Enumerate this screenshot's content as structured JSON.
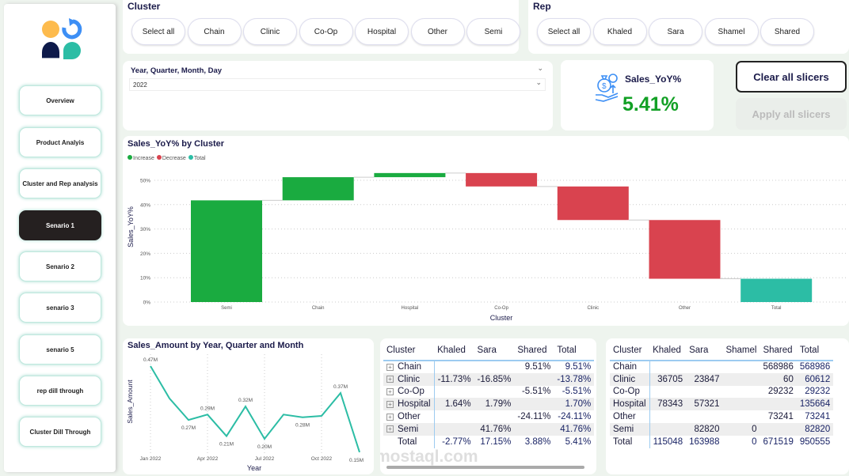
{
  "nav": {
    "items": [
      "Overview",
      "Product Analyis",
      "Cluster and Rep analysis",
      "Senario 1",
      "Senario 2",
      "senario 3",
      "senario 5",
      "rep dill through",
      "Cluster Dill Through"
    ],
    "active": 3
  },
  "cluster_slicer": {
    "title": "Cluster",
    "options": [
      "Select all",
      "Chain",
      "Clinic",
      "Co-Op",
      "Hospital",
      "Other",
      "Semi"
    ]
  },
  "rep_slicer": {
    "title": "Rep",
    "options": [
      "Select all",
      "Khaled",
      "Sara",
      "Shamel",
      "Shared"
    ]
  },
  "date_slicer": {
    "title": "Year, Quarter, Month, Day",
    "value": "2022"
  },
  "kpi": {
    "label": "Sales_YoY%",
    "value": "5.41%",
    "icon": "money-bag-hand-icon",
    "color": "#12a025"
  },
  "buttons": {
    "clear": "Clear all slicers",
    "apply": "Apply all slicers"
  },
  "colors": {
    "increase": "#1aab40",
    "decrease": "#d9434f",
    "total": "#2cbda5",
    "line": "#2cbda5"
  },
  "chart_data": [
    {
      "type": "waterfall",
      "title": "Sales_YoY% by Cluster",
      "xlabel": "Cluster",
      "ylabel": "Sales_YoY%",
      "legend": [
        "Increase",
        "Decrease",
        "Total"
      ],
      "legend_position": "top-left",
      "categories": [
        "Semi",
        "Chain",
        "Hospital",
        "Co-Op",
        "Clinic",
        "Other",
        "Total"
      ],
      "values": [
        41.76,
        9.51,
        1.7,
        -5.51,
        -13.78,
        -24.11,
        null
      ],
      "yticks": [
        "0%",
        "10%",
        "20%",
        "30%",
        "40%",
        "50%"
      ],
      "ylim": [
        0,
        55
      ],
      "grid": true
    },
    {
      "type": "line",
      "title": "Sales_Amount by Year, Quarter and Month",
      "xlabel": "Year",
      "ylabel": "Sales_Amount",
      "x": [
        "Jan 2022",
        "Feb 2022",
        "Mar 2022",
        "Apr 2022",
        "May 2022",
        "Jun 2022",
        "Jul 2022",
        "Aug 2022",
        "Sep 2022",
        "Oct 2022",
        "Nov 2022",
        "Dec 2022"
      ],
      "values": [
        0.47,
        0.35,
        0.27,
        0.29,
        0.21,
        0.32,
        0.2,
        0.29,
        0.28,
        0.285,
        0.37,
        0.15
      ],
      "labels": [
        "0.47M",
        null,
        "0.27M",
        "0.29M",
        "0.21M",
        "0.32M",
        "0.20M",
        null,
        "0.28M",
        null,
        "0.37M",
        "0.15M"
      ],
      "xticks": [
        "Jan 2022",
        "Apr 2022",
        "Jul 2022",
        "Oct 2022"
      ],
      "grid": "vertical"
    }
  ],
  "yoy_matrix": {
    "headers": [
      "Cluster",
      "Khaled",
      "Sara",
      "Shared",
      "Total"
    ],
    "rows": [
      [
        "Chain",
        "",
        "",
        "9.51%",
        "9.51%"
      ],
      [
        "Clinic",
        "-11.73%",
        "-16.85%",
        "",
        "-13.78%"
      ],
      [
        "Co-Op",
        "",
        "",
        "-5.51%",
        "-5.51%"
      ],
      [
        "Hospital",
        "1.64%",
        "1.79%",
        "",
        "1.70%"
      ],
      [
        "Other",
        "",
        "",
        "-24.11%",
        "-24.11%"
      ],
      [
        "Semi",
        "",
        "41.76%",
        "",
        "41.76%"
      ]
    ],
    "total": [
      "Total",
      "-2.77%",
      "17.15%",
      "3.88%",
      "5.41%"
    ]
  },
  "amount_matrix": {
    "headers": [
      "Cluster",
      "Khaled",
      "Sara",
      "Shamel",
      "Shared",
      "Total"
    ],
    "rows": [
      [
        "Chain",
        "",
        "",
        "",
        "568986",
        "568986"
      ],
      [
        "Clinic",
        "36705",
        "23847",
        "",
        "60",
        "60612"
      ],
      [
        "Co-Op",
        "",
        "",
        "",
        "29232",
        "29232"
      ],
      [
        "Hospital",
        "78343",
        "57321",
        "",
        "",
        "135664"
      ],
      [
        "Other",
        "",
        "",
        "",
        "73241",
        "73241"
      ],
      [
        "Semi",
        "",
        "82820",
        "0",
        "",
        "82820"
      ]
    ],
    "total": [
      "Total",
      "115048",
      "163988",
      "0",
      "671519",
      "950555"
    ]
  },
  "watermark": "mostaql.com"
}
